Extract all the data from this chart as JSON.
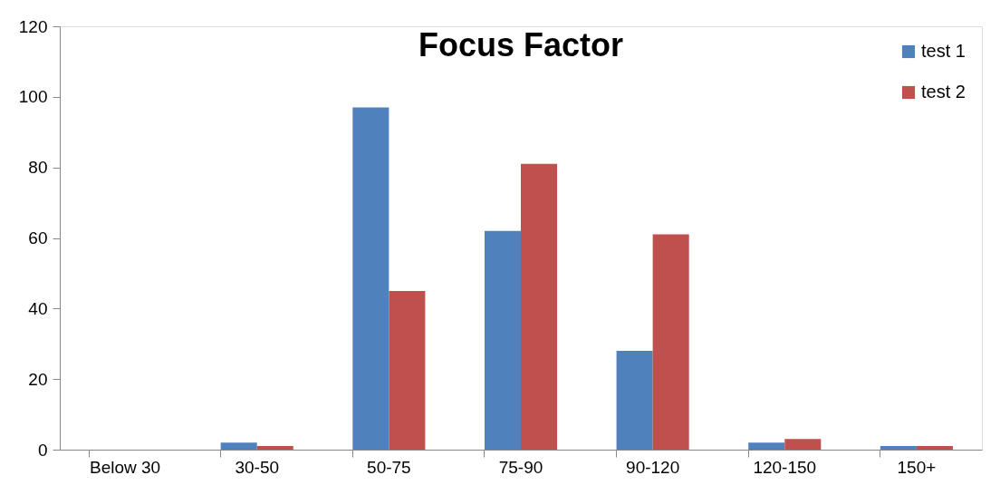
{
  "chart_data": {
    "type": "bar",
    "title": "Focus Factor",
    "categories": [
      "Below 30",
      "30-50",
      "50-75",
      "75-90",
      "90-120",
      "120-150",
      "150+"
    ],
    "series": [
      {
        "name": "test 1",
        "color": "#4f81bd",
        "values": [
          0,
          2,
          97,
          62,
          28,
          2,
          1
        ]
      },
      {
        "name": "test 2",
        "color": "#c0504d",
        "values": [
          0,
          1,
          45,
          81,
          61,
          3,
          1
        ]
      }
    ],
    "ylim": [
      0,
      120
    ],
    "yticks": [
      0,
      20,
      40,
      60,
      80,
      100,
      120
    ],
    "grid": false,
    "legend": "top right"
  }
}
